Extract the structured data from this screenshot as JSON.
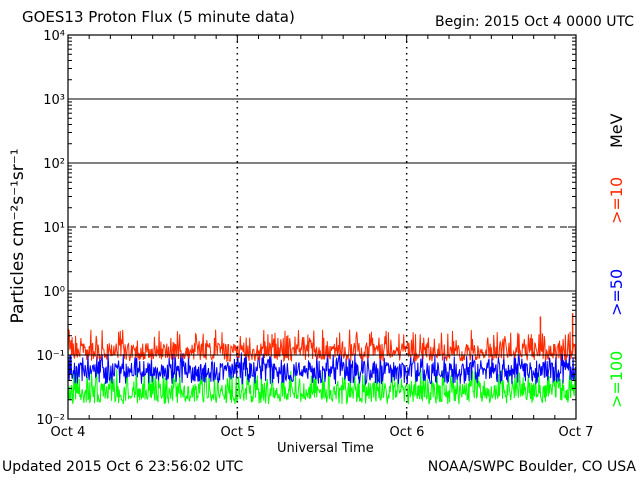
{
  "header": {
    "title": "GOES13 Proton Flux (5 minute data)",
    "begin": "Begin: 2015 Oct 4 0000 UTC"
  },
  "footer": {
    "updated": "Updated 2015 Oct  6 23:56:02 UTC",
    "credit": "NOAA/SWPC Boulder, CO USA"
  },
  "chart_data": {
    "type": "line",
    "title": "GOES13 Proton Flux (5 minute data)",
    "xlabel": "Universal Time",
    "ylabel": "Particles cm⁻²s⁻¹sr⁻¹",
    "yscale": "log",
    "ylim": [
      0.01,
      10000
    ],
    "ytick_labels": [
      "10⁻²",
      "10⁻¹",
      "10⁰",
      "10¹",
      "10²",
      "10³",
      "10⁴"
    ],
    "x_categories": [
      "Oct 4",
      "Oct 5",
      "Oct 6",
      "Oct 7"
    ],
    "legend_unit": "MeV",
    "series": [
      {
        "name": ">=10",
        "color": "#ff2a00",
        "typical": 0.12,
        "low": 0.08,
        "high": 0.25
      },
      {
        "name": ">=50",
        "color": "#0000ff",
        "typical": 0.06,
        "low": 0.035,
        "high": 0.11
      },
      {
        "name": ">=100",
        "color": "#00ff00",
        "typical": 0.028,
        "low": 0.017,
        "high": 0.06
      }
    ],
    "thresholds": [
      {
        "value": 10,
        "style": "dashed"
      },
      {
        "value": 0.1,
        "style": "solid"
      }
    ],
    "grid": true
  }
}
